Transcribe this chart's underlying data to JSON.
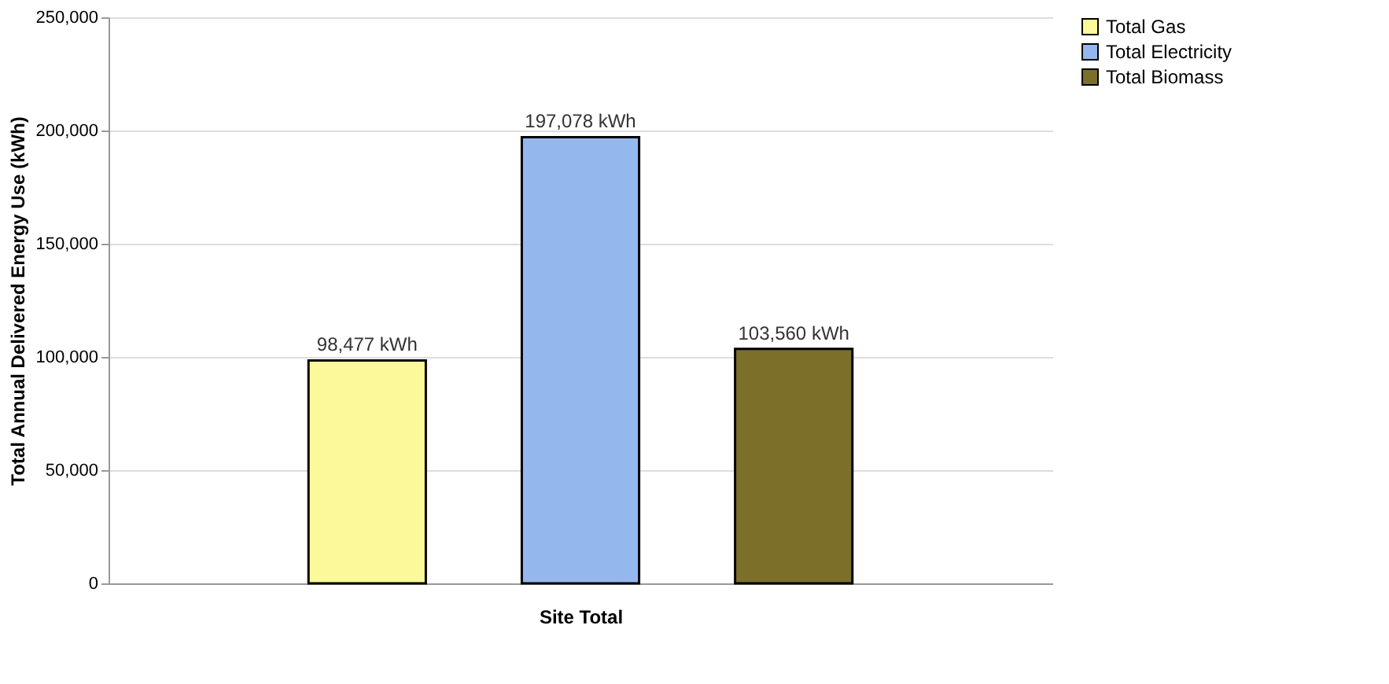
{
  "chart_data": {
    "type": "bar",
    "xlabel": "Site Total",
    "ylabel": "Total Annual Delivered Energy Use (kWh)",
    "categories": [
      null
    ],
    "series": [
      {
        "name": "Total Gas",
        "color": "#fcf99a",
        "values": [
          98477
        ],
        "value_labels": [
          "98,477 kWh"
        ]
      },
      {
        "name": "Total Electricity",
        "color": "#94b8ee",
        "values": [
          197078
        ],
        "value_labels": [
          "197,078 kWh"
        ]
      },
      {
        "name": "Total Biomass",
        "color": "#7b6f2a",
        "values": [
          103560
        ],
        "value_labels": [
          "103,560 kWh"
        ]
      }
    ],
    "ylim": [
      0,
      250000
    ],
    "yticks": [
      0,
      {
        "value": 50000,
        "label": "50,000"
      },
      {
        "value": 100000,
        "label": "100,000"
      },
      {
        "value": 150000,
        "label": "150,000"
      },
      {
        "value": 200000,
        "label": "200,000"
      },
      {
        "value": 250000,
        "label": "250,000"
      }
    ],
    "grid": "y",
    "legend": "right"
  }
}
